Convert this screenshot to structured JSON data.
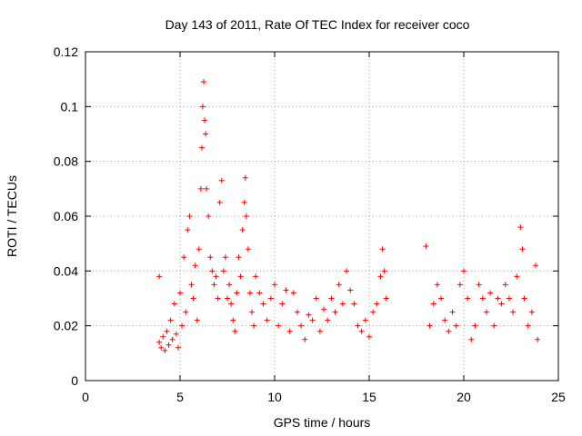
{
  "chart_data": {
    "type": "scatter",
    "title": "Day 143 of 2011, Rate Of TEC Index for receiver coco",
    "xlabel": "GPS time / hours",
    "ylabel": "ROTI / TECUs",
    "xlim": [
      0,
      25
    ],
    "ylim": [
      0,
      0.12
    ],
    "x_ticks": [
      "0",
      "5",
      "10",
      "15",
      "20",
      "25"
    ],
    "y_ticks": [
      "0",
      "0.02",
      "0.04",
      "0.06",
      "0.08",
      "0.1",
      "0.12"
    ],
    "grid": true,
    "marker": "+",
    "color": "#ff0000",
    "series": [
      {
        "points": [
          [
            3.9,
            0.038
          ],
          [
            3.9,
            0.014
          ],
          [
            4.0,
            0.012
          ],
          [
            4.1,
            0.016
          ],
          [
            4.2,
            0.011
          ],
          [
            4.3,
            0.018
          ],
          [
            4.4,
            0.013
          ],
          [
            4.5,
            0.022
          ],
          [
            4.6,
            0.015
          ],
          [
            4.7,
            0.028
          ],
          [
            4.8,
            0.017
          ],
          [
            4.9,
            0.012
          ],
          [
            5.0,
            0.032
          ],
          [
            5.1,
            0.02
          ],
          [
            5.2,
            0.045
          ],
          [
            5.3,
            0.025
          ],
          [
            5.4,
            0.055
          ],
          [
            5.5,
            0.06
          ],
          [
            5.6,
            0.035
          ],
          [
            5.7,
            0.03
          ],
          [
            5.8,
            0.042
          ],
          [
            5.9,
            0.022
          ],
          [
            6.0,
            0.048
          ],
          [
            6.1,
            0.07
          ],
          [
            6.15,
            0.085
          ],
          [
            6.2,
            0.1
          ],
          [
            6.25,
            0.109
          ],
          [
            6.3,
            0.095
          ],
          [
            6.35,
            0.09
          ],
          [
            6.4,
            0.07
          ],
          [
            6.5,
            0.06
          ],
          [
            6.6,
            0.045
          ],
          [
            6.7,
            0.04
          ],
          [
            6.8,
            0.035
          ],
          [
            6.9,
            0.038
          ],
          [
            7.0,
            0.03
          ],
          [
            7.1,
            0.065
          ],
          [
            7.2,
            0.073
          ],
          [
            7.3,
            0.04
          ],
          [
            7.4,
            0.045
          ],
          [
            7.5,
            0.03
          ],
          [
            7.6,
            0.035
          ],
          [
            7.7,
            0.028
          ],
          [
            7.8,
            0.022
          ],
          [
            7.9,
            0.018
          ],
          [
            8.0,
            0.032
          ],
          [
            8.1,
            0.045
          ],
          [
            8.2,
            0.038
          ],
          [
            8.3,
            0.055
          ],
          [
            8.4,
            0.065
          ],
          [
            8.45,
            0.074
          ],
          [
            8.5,
            0.06
          ],
          [
            8.6,
            0.048
          ],
          [
            8.7,
            0.032
          ],
          [
            8.8,
            0.025
          ],
          [
            8.9,
            0.02
          ],
          [
            9.0,
            0.038
          ],
          [
            9.2,
            0.032
          ],
          [
            9.4,
            0.028
          ],
          [
            9.6,
            0.022
          ],
          [
            9.8,
            0.03
          ],
          [
            10.0,
            0.035
          ],
          [
            10.2,
            0.02
          ],
          [
            10.4,
            0.028
          ],
          [
            10.6,
            0.033
          ],
          [
            10.8,
            0.018
          ],
          [
            11.0,
            0.032
          ],
          [
            11.2,
            0.025
          ],
          [
            11.4,
            0.02
          ],
          [
            11.6,
            0.015
          ],
          [
            11.8,
            0.024
          ],
          [
            12.0,
            0.022
          ],
          [
            12.2,
            0.03
          ],
          [
            12.4,
            0.018
          ],
          [
            12.6,
            0.026
          ],
          [
            12.8,
            0.022
          ],
          [
            13.0,
            0.03
          ],
          [
            13.2,
            0.025
          ],
          [
            13.4,
            0.035
          ],
          [
            13.6,
            0.028
          ],
          [
            13.8,
            0.04
          ],
          [
            14.0,
            0.033
          ],
          [
            14.2,
            0.028
          ],
          [
            14.4,
            0.02
          ],
          [
            14.6,
            0.018
          ],
          [
            14.8,
            0.022
          ],
          [
            15.0,
            0.016
          ],
          [
            15.2,
            0.025
          ],
          [
            15.4,
            0.028
          ],
          [
            15.6,
            0.038
          ],
          [
            15.7,
            0.048
          ],
          [
            15.8,
            0.04
          ],
          [
            15.9,
            0.03
          ],
          [
            18.0,
            0.049
          ],
          [
            18.2,
            0.02
          ],
          [
            18.4,
            0.028
          ],
          [
            18.6,
            0.035
          ],
          [
            18.8,
            0.03
          ],
          [
            19.0,
            0.022
          ],
          [
            19.2,
            0.018
          ],
          [
            19.4,
            0.025
          ],
          [
            19.6,
            0.02
          ],
          [
            19.8,
            0.035
          ],
          [
            20.0,
            0.04
          ],
          [
            20.2,
            0.03
          ],
          [
            20.4,
            0.015
          ],
          [
            20.6,
            0.02
          ],
          [
            20.8,
            0.035
          ],
          [
            21.0,
            0.03
          ],
          [
            21.2,
            0.025
          ],
          [
            21.4,
            0.032
          ],
          [
            21.6,
            0.02
          ],
          [
            21.8,
            0.03
          ],
          [
            22.0,
            0.028
          ],
          [
            22.2,
            0.035
          ],
          [
            22.4,
            0.03
          ],
          [
            22.6,
            0.025
          ],
          [
            22.8,
            0.038
          ],
          [
            23.0,
            0.056
          ],
          [
            23.1,
            0.048
          ],
          [
            23.2,
            0.03
          ],
          [
            23.4,
            0.02
          ],
          [
            23.6,
            0.025
          ],
          [
            23.8,
            0.042
          ],
          [
            23.9,
            0.015
          ]
        ]
      }
    ]
  }
}
